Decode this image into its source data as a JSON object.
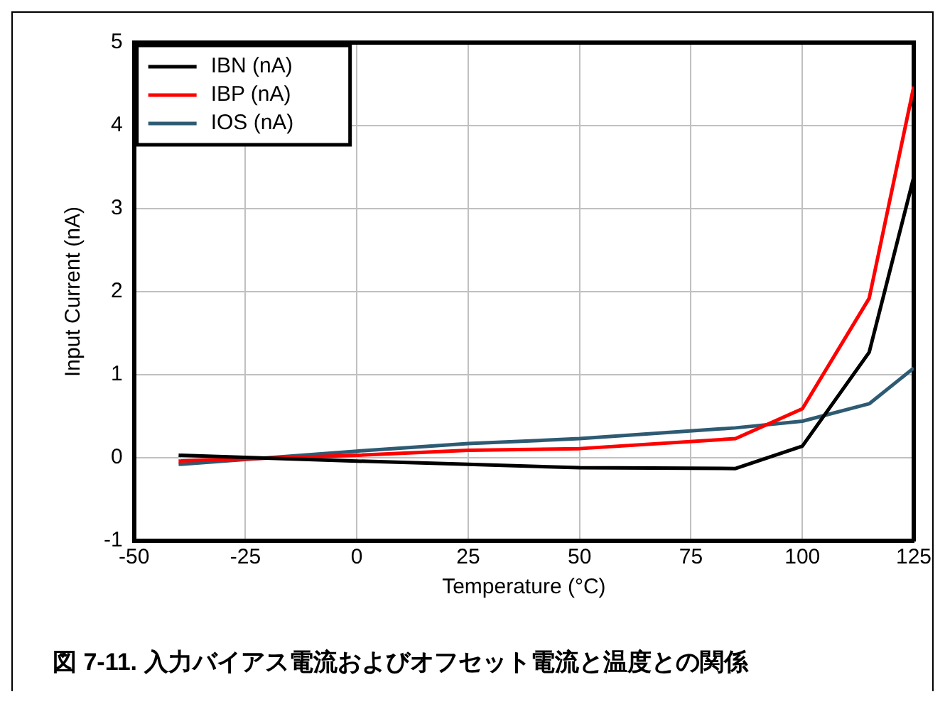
{
  "chart_data": {
    "type": "line",
    "title": "図 7-11. 入力バイアス電流およびオフセット電流と温度との関係",
    "xlabel": "Temperature (°C)",
    "ylabel": "Input Current (nA)",
    "x": [
      -40,
      0,
      25,
      50,
      85,
      100,
      115,
      125
    ],
    "series": [
      {
        "name": "IBN (nA)",
        "color": "#000000",
        "values": [
          0.03,
          -0.04,
          -0.08,
          -0.12,
          -0.13,
          0.14,
          1.27,
          3.38
        ]
      },
      {
        "name": "IBP (nA)",
        "color": "#ff0000",
        "values": [
          -0.04,
          0.03,
          0.09,
          0.11,
          0.23,
          0.59,
          1.92,
          4.47
        ]
      },
      {
        "name": "IOS (nA)",
        "color": "#2e5b73",
        "values": [
          -0.08,
          0.08,
          0.17,
          0.23,
          0.36,
          0.44,
          0.65,
          1.08
        ]
      }
    ],
    "xlim": [
      -50,
      125
    ],
    "xticks": [
      -50,
      -25,
      0,
      25,
      50,
      75,
      100,
      125
    ],
    "ylim": [
      -1,
      5
    ],
    "yticks": [
      -1,
      0,
      1,
      2,
      3,
      4,
      5
    ],
    "grid": true,
    "legend": "top left",
    "marker": "none",
    "line_style": "solid"
  }
}
